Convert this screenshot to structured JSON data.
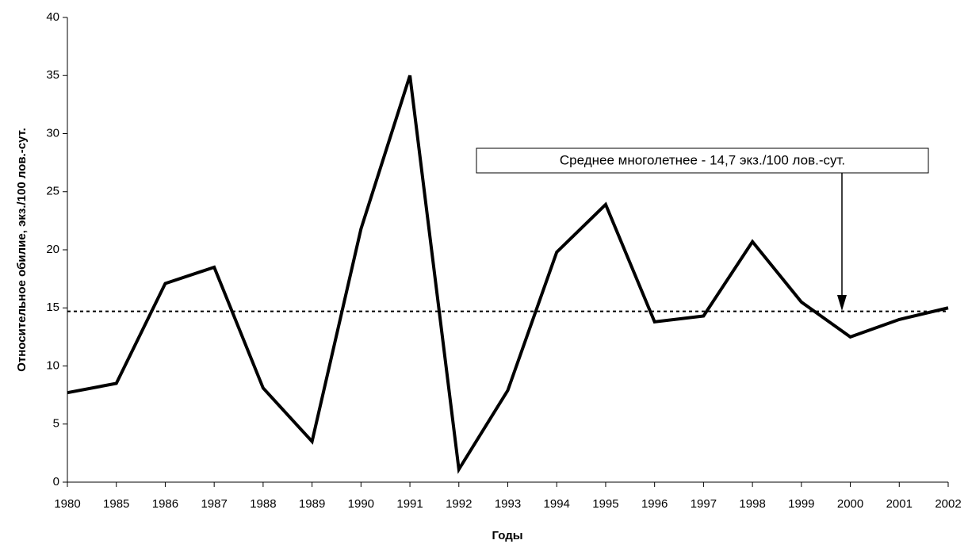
{
  "chart_data": {
    "type": "line",
    "x_label": "Годы",
    "y_label": "Относительное обилие, экз./100 лов.-сут.",
    "categories": [
      "1980",
      "1985",
      "1986",
      "1987",
      "1988",
      "1989",
      "1990",
      "1991",
      "1992",
      "1993",
      "1994",
      "1995",
      "1996",
      "1997",
      "1998",
      "1999",
      "2000",
      "2001",
      "2002"
    ],
    "values": [
      7.7,
      8.5,
      17.1,
      18.5,
      8.1,
      3.5,
      21.8,
      35,
      1.1,
      7.9,
      19.8,
      23.9,
      13.8,
      14.3,
      20.7,
      15.5,
      12.5,
      14.0,
      15.0
    ],
    "color": "#000000",
    "mean": 14.7,
    "annotation": "Среднее многолетнее - 14,7 экз./100 лов.-сут.",
    "ylim": [
      0,
      40
    ],
    "yticks": [
      0,
      5,
      10,
      15,
      20,
      25,
      30,
      35,
      40
    ],
    "grid": false
  }
}
